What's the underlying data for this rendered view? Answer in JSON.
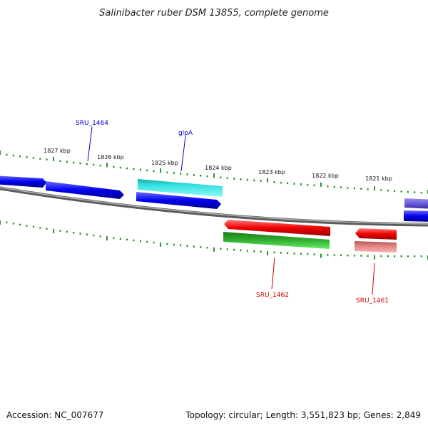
{
  "title": "Salinibacter ruber DSM 13855, complete genome",
  "footer": {
    "accession": "Accession: NC_007677",
    "summary": "Topology: circular; Length: 3,551,823 bp; Genes: 2,849"
  },
  "colors": {
    "backbone": "#808080",
    "tick": "#118811",
    "forward_gene": "#0000ee",
    "reverse_gene": "#ee0000",
    "forward_label": "#0000cc",
    "reverse_label": "#cc0000",
    "cyan_feature": "#33e6ee",
    "green_feature": "#22bb22",
    "pink_feature": "#ee8888",
    "purple_feature": "#7766dd"
  },
  "scale_labels": [
    "1827 kbp",
    "1826 kbp",
    "1825 kbp",
    "1824 kbp",
    "1823 kbp",
    "1822 kbp",
    "1821 kbp"
  ],
  "gene_labels": [
    {
      "name": "SRU_1464",
      "strand": "forward"
    },
    {
      "name": "glpA",
      "strand": "forward"
    },
    {
      "name": "SRU_1462",
      "strand": "reverse"
    },
    {
      "name": "SRU_1461",
      "strand": "reverse"
    }
  ]
}
